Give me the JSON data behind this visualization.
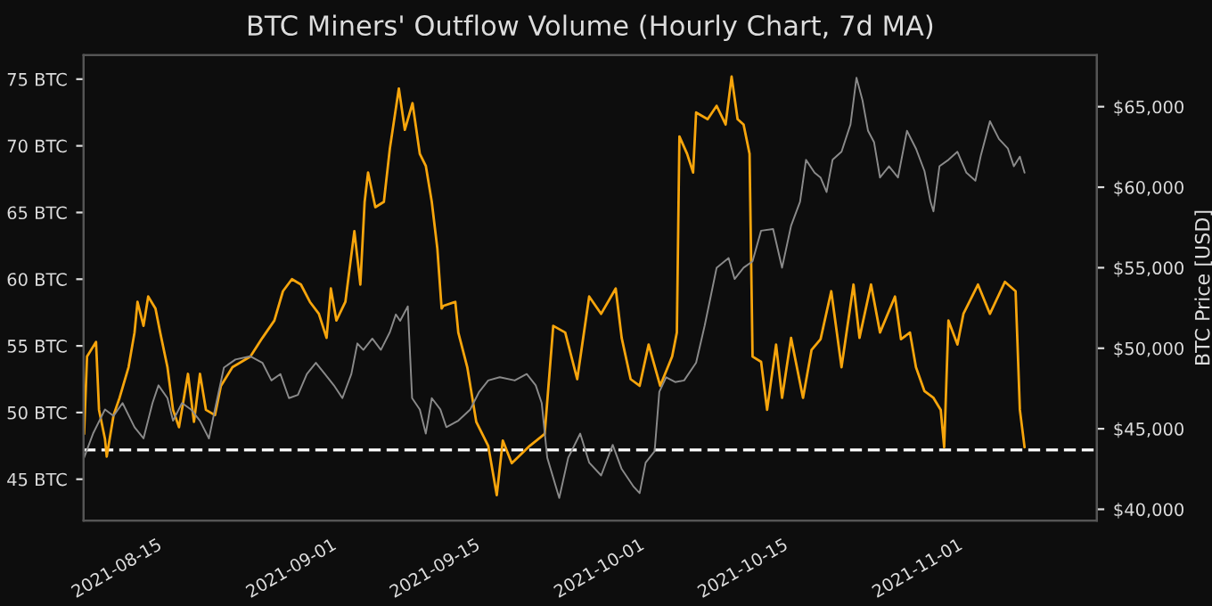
{
  "chart_data": {
    "type": "line",
    "title": "BTC Miners' Outflow Volume (Hourly Chart, 7d MA)",
    "y2label": "BTC Price [USD]",
    "xlim": [
      "2021-08-07T02:00",
      "2021-11-13T19:00"
    ],
    "xticks": [
      {
        "value": "2021-08-15",
        "label": "2021-08-15"
      },
      {
        "value": "2021-09-01",
        "label": "2021-09-01"
      },
      {
        "value": "2021-09-15",
        "label": "2021-09-15"
      },
      {
        "value": "2021-10-01",
        "label": "2021-10-01"
      },
      {
        "value": "2021-10-15",
        "label": "2021-10-15"
      },
      {
        "value": "2021-11-01",
        "label": "2021-11-01"
      }
    ],
    "ylim": [
      41.9,
      76.8
    ],
    "yticks": [
      {
        "value": 45,
        "label": "45 BTC"
      },
      {
        "value": 50,
        "label": "50 BTC"
      },
      {
        "value": 55,
        "label": "55 BTC"
      },
      {
        "value": 60,
        "label": "60 BTC"
      },
      {
        "value": 65,
        "label": "65 BTC"
      },
      {
        "value": 70,
        "label": "70 BTC"
      },
      {
        "value": 75,
        "label": "75 BTC"
      }
    ],
    "y2lim": [
      39300,
      68200
    ],
    "y2ticks": [
      {
        "value": 40000,
        "label": "$40,000"
      },
      {
        "value": 45000,
        "label": "$45,000"
      },
      {
        "value": 50000,
        "label": "$50,000"
      },
      {
        "value": 55000,
        "label": "$55,000"
      },
      {
        "value": 60000,
        "label": "$60,000"
      },
      {
        "value": 65000,
        "label": "$65,000"
      }
    ],
    "grid": false,
    "marker": "none",
    "line_style": "solid",
    "ref_lines": [
      {
        "axis": "y",
        "value": 47.2,
        "color": "#ffffff",
        "line_style": "dashed"
      }
    ],
    "series": [
      {
        "color": "#8a8a8a",
        "axis": "y2",
        "x": [
          "2021-08-07T03:00",
          "2021-08-08T00:00",
          "2021-08-09T04:00",
          "2021-08-10T00:00",
          "2021-08-10T21:00",
          "2021-08-12T01:00",
          "2021-08-12T22:00",
          "2021-08-13T19:00",
          "2021-08-14T09:00",
          "2021-08-15T06:00",
          "2021-08-15T19:00",
          "2021-08-16T16:00",
          "2021-08-17T13:00",
          "2021-08-18T10:00",
          "2021-08-19T07:00",
          "2021-08-19T21:00",
          "2021-08-20T18:00",
          "2021-08-21T21:00",
          "2021-08-23T08:00",
          "2021-08-24T12:00",
          "2021-08-25T09:00",
          "2021-08-26T06:00",
          "2021-08-27T02:00",
          "2021-08-27T23:00",
          "2021-08-28T20:00",
          "2021-08-29T17:00",
          "2021-08-30T14:00",
          "2021-08-31T11:00",
          "2021-09-01T07:00",
          "2021-09-02T04:00",
          "2021-09-02T18:00",
          "2021-09-03T08:00",
          "2021-09-04T05:00",
          "2021-09-05T01:00",
          "2021-09-05T22:00",
          "2021-09-06T12:00",
          "2021-09-06T22:00",
          "2021-09-07T16:00",
          "2021-09-08T02:00",
          "2021-09-08T20:00",
          "2021-09-09T10:00",
          "2021-09-10T00:00",
          "2021-09-10T20:00",
          "2021-09-11T10:00",
          "2021-09-12T14:00",
          "2021-09-13T18:00",
          "2021-09-14T15:00",
          "2021-09-15T12:00",
          "2021-09-16T15:00",
          "2021-09-18T02:00",
          "2021-09-19T06:00",
          "2021-09-20T03:00",
          "2021-09-20T17:00",
          "2021-09-21T06:00",
          "2021-09-22T10:00",
          "2021-09-23T07:00",
          "2021-09-24T11:00",
          "2021-09-25T08:00",
          "2021-09-26T12:00",
          "2021-09-27T15:00",
          "2021-09-28T12:00",
          "2021-09-29T16:00",
          "2021-09-30T06:00",
          "2021-09-30T20:00",
          "2021-10-01T17:00",
          "2021-10-02T04:00",
          "2021-10-02T20:00",
          "2021-10-03T17:00",
          "2021-10-04T14:00",
          "2021-10-05T18:00",
          "2021-10-06T14:00",
          "2021-10-07T04:00",
          "2021-10-07T18:00",
          "2021-10-08T22:00",
          "2021-10-09T12:00",
          "2021-10-10T09:00",
          "2021-10-11T06:00",
          "2021-10-12T02:00",
          "2021-10-13T06:00",
          "2021-10-14T03:00",
          "2021-10-15T00:00",
          "2021-10-15T21:00",
          "2021-10-16T11:00",
          "2021-10-17T07:00",
          "2021-10-17T21:00",
          "2021-10-18T11:00",
          "2021-10-19T01:00",
          "2021-10-19T22:00",
          "2021-10-20T19:00",
          "2021-10-21T09:00",
          "2021-10-21T23:00",
          "2021-10-22T12:00",
          "2021-10-23T02:00",
          "2021-10-23T16:00",
          "2021-10-24T13:00",
          "2021-10-25T10:00",
          "2021-10-26T07:00",
          "2021-10-27T04:00",
          "2021-10-28T00:00",
          "2021-10-28T14:00",
          "2021-10-28T21:00",
          "2021-10-29T11:00",
          "2021-10-30T08:00",
          "2021-10-31T05:00",
          "2021-11-01T02:00",
          "2021-11-01T23:00",
          "2021-11-02T12:00",
          "2021-11-03T09:00",
          "2021-11-04T06:00",
          "2021-11-05T03:00",
          "2021-11-05T17:00",
          "2021-11-06T07:00",
          "2021-11-06T18:00"
        ],
        "values": [
          43200,
          44700,
          46200,
          45800,
          46600,
          45100,
          44400,
          46600,
          47700,
          46900,
          45500,
          46600,
          46200,
          45500,
          44400,
          46200,
          48800,
          49300,
          49500,
          49100,
          48000,
          48400,
          46900,
          47100,
          48400,
          49100,
          48400,
          47700,
          46900,
          48400,
          50300,
          49900,
          50600,
          49900,
          51000,
          52100,
          51700,
          52600,
          46900,
          46200,
          44700,
          46900,
          46200,
          45100,
          45500,
          46200,
          47300,
          48000,
          48200,
          48000,
          48400,
          47700,
          46600,
          43200,
          40700,
          43200,
          44700,
          42900,
          42100,
          44000,
          42500,
          41400,
          41000,
          42900,
          43600,
          47300,
          48200,
          47900,
          48000,
          49100,
          51400,
          53200,
          55000,
          55600,
          54300,
          55000,
          55400,
          57300,
          57400,
          55000,
          57600,
          59100,
          61700,
          60900,
          60600,
          59700,
          61700,
          62200,
          63900,
          66800,
          65400,
          63500,
          62800,
          60600,
          61300,
          60600,
          63500,
          62400,
          61000,
          59100,
          58500,
          61300,
          61700,
          62200,
          60900,
          60400,
          62000,
          64100,
          63000,
          62400,
          61300,
          61900,
          60900
        ]
      },
      {
        "color": "#f7a50c",
        "x": [
          "2021-08-07T03:00",
          "2021-08-07T10:00",
          "2021-08-08T07:00",
          "2021-08-08T14:00",
          "2021-08-09T04:00",
          "2021-08-09T08:00",
          "2021-08-10T00:00",
          "2021-08-10T14:00",
          "2021-08-11T11:00",
          "2021-08-12T01:00",
          "2021-08-12T08:00",
          "2021-08-12T22:00",
          "2021-08-13T09:00",
          "2021-08-14T02:00",
          "2021-08-14T13:00",
          "2021-08-15T06:00",
          "2021-08-15T19:00",
          "2021-08-16T09:00",
          "2021-08-17T06:00",
          "2021-08-17T20:00",
          "2021-08-18T10:00",
          "2021-08-19T00:00",
          "2021-08-19T21:00",
          "2021-08-20T11:00",
          "2021-08-21T14:00",
          "2021-08-23T08:00",
          "2021-08-24T12:00",
          "2021-08-25T16:00",
          "2021-08-26T12:00",
          "2021-08-27T09:00",
          "2021-08-28T06:00",
          "2021-08-29T03:00",
          "2021-08-30T00:00",
          "2021-08-30T18:00",
          "2021-08-31T04:00",
          "2021-08-31T17:00",
          "2021-09-01T14:00",
          "2021-09-02T11:00",
          "2021-09-03T01:00",
          "2021-09-03T11:00",
          "2021-09-03T19:00",
          "2021-09-04T12:00",
          "2021-09-05T08:00",
          "2021-09-05T22:00",
          "2021-09-06T19:00",
          "2021-09-07T09:00",
          "2021-09-08T03:00",
          "2021-09-08T20:00",
          "2021-09-09T10:00",
          "2021-09-10T00:00",
          "2021-09-10T13:00",
          "2021-09-10T23:00",
          "2021-09-11T03:00",
          "2021-09-12T07:00",
          "2021-09-12T14:00",
          "2021-09-13T11:00",
          "2021-09-14T08:00",
          "2021-09-15T12:00",
          "2021-09-16T08:00",
          "2021-09-16T22:00",
          "2021-09-17T19:00",
          "2021-09-19T13:00",
          "2021-09-21T00:00",
          "2021-09-21T20:00",
          "2021-09-23T00:00",
          "2021-09-24T04:00",
          "2021-09-25T08:00",
          "2021-09-26T12:00",
          "2021-09-27T22:00",
          "2021-09-28T12:00",
          "2021-09-29T09:00",
          "2021-09-30T06:00",
          "2021-10-01T03:00",
          "2021-10-02T06:00",
          "2021-10-03T10:00",
          "2021-10-03T21:00",
          "2021-10-04T03:00",
          "2021-10-04T21:00",
          "2021-10-05T11:00",
          "2021-10-05T18:00",
          "2021-10-06T21:00",
          "2021-10-07T18:00",
          "2021-10-08T15:00",
          "2021-10-09T05:00",
          "2021-10-09T19:00",
          "2021-10-10T09:00",
          "2021-10-10T23:00",
          "2021-10-11T06:00",
          "2021-10-12T02:00",
          "2021-10-12T16:00",
          "2021-10-13T13:00",
          "2021-10-14T03:00",
          "2021-10-15T00:00",
          "2021-10-16T04:00",
          "2021-10-17T00:00",
          "2021-10-17T21:00",
          "2021-10-18T22:00",
          "2021-10-19T22:00",
          "2021-10-21T02:00",
          "2021-10-21T16:00",
          "2021-10-22T19:00",
          "2021-10-23T16:00",
          "2021-10-25T03:00",
          "2021-10-25T17:00",
          "2021-10-26T14:00",
          "2021-10-27T04:00",
          "2021-10-28T00:00",
          "2021-10-28T21:00",
          "2021-10-29T14:00",
          "2021-10-29T22:00",
          "2021-10-30T08:00",
          "2021-10-31T05:00",
          "2021-10-31T19:00",
          "2021-11-02T05:00",
          "2021-11-03T09:00",
          "2021-11-04T20:00",
          "2021-11-05T21:00",
          "2021-11-06T07:00",
          "2021-11-06T18:00"
        ],
        "values": [
          48.4,
          54.2,
          55.3,
          50.2,
          48.0,
          46.7,
          49.8,
          51.1,
          53.4,
          56.0,
          58.3,
          56.5,
          58.7,
          57.8,
          56.0,
          53.4,
          50.2,
          48.9,
          52.9,
          49.3,
          52.9,
          50.2,
          49.8,
          52.0,
          53.4,
          54.2,
          55.6,
          56.9,
          59.1,
          60.0,
          59.6,
          58.3,
          57.4,
          55.6,
          59.3,
          56.9,
          58.3,
          63.6,
          59.6,
          65.8,
          68.0,
          65.4,
          65.8,
          69.8,
          74.3,
          71.2,
          73.2,
          69.4,
          68.5,
          65.8,
          62.3,
          57.8,
          58.0,
          58.3,
          56.0,
          53.4,
          49.3,
          47.5,
          43.8,
          47.9,
          46.2,
          47.5,
          48.4,
          56.5,
          56.0,
          52.5,
          58.7,
          57.4,
          59.3,
          55.6,
          52.5,
          52.0,
          55.1,
          52.0,
          54.2,
          56.0,
          70.7,
          69.4,
          68.0,
          72.5,
          72.0,
          73.0,
          71.6,
          75.2,
          72.0,
          71.6,
          69.4,
          54.2,
          53.8,
          50.2,
          55.1,
          51.1,
          55.6,
          51.1,
          54.7,
          55.5,
          59.1,
          53.4,
          59.6,
          55.6,
          59.6,
          56.0,
          58.7,
          55.5,
          56.0,
          53.4,
          51.6,
          51.1,
          50.2,
          47.4,
          56.9,
          55.1,
          57.4,
          59.6,
          57.4,
          59.8,
          59.1,
          50.2,
          47.4
        ]
      }
    ]
  }
}
